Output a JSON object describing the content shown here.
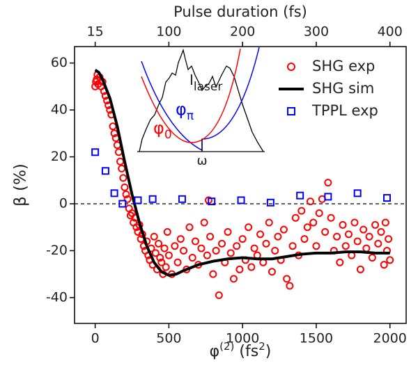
{
  "chart_data": {
    "type": "scatter",
    "ylabel": "β (%)",
    "xlabel_parts": [
      "φ",
      "(2)",
      " (fs",
      "2",
      ")"
    ],
    "x2label": "Pulse duration (fs)",
    "xlim": [
      -140,
      2110
    ],
    "ylim": [
      -51,
      67
    ],
    "xticks": [
      0,
      500,
      1000,
      1500,
      2000
    ],
    "yticks": [
      -40,
      -20,
      0,
      20,
      40,
      60
    ],
    "x2ticks": [
      {
        "value": 0,
        "label": "15"
      },
      {
        "value": 500,
        "label": "100"
      },
      {
        "value": 1000,
        "label": "200"
      },
      {
        "value": 1500,
        "label": "300"
      },
      {
        "value": 2000,
        "label": "400"
      }
    ],
    "reference_line": 0,
    "legend": "upper right",
    "series": [
      {
        "name": "SHG exp",
        "color": "#ff0000",
        "marker": "circle",
        "x": [
          0,
          5,
          10,
          15,
          20,
          30,
          40,
          50,
          60,
          70,
          80,
          90,
          100,
          110,
          120,
          130,
          140,
          150,
          160,
          170,
          180,
          190,
          200,
          210,
          220,
          230,
          240,
          250,
          260,
          270,
          280,
          290,
          300,
          310,
          320,
          330,
          340,
          350,
          360,
          370,
          380,
          390,
          400,
          410,
          420,
          430,
          440,
          450,
          460,
          470,
          480,
          490,
          500,
          520,
          540,
          560,
          580,
          600,
          620,
          640,
          660,
          680,
          700,
          720,
          740,
          760,
          770,
          780,
          800,
          820,
          840,
          860,
          880,
          900,
          920,
          940,
          960,
          980,
          1000,
          1020,
          1040,
          1060,
          1080,
          1100,
          1120,
          1140,
          1160,
          1180,
          1200,
          1220,
          1240,
          1260,
          1280,
          1300,
          1320,
          1340,
          1360,
          1380,
          1400,
          1420,
          1440,
          1460,
          1480,
          1500,
          1520,
          1540,
          1560,
          1580,
          1600,
          1620,
          1640,
          1660,
          1680,
          1700,
          1720,
          1740,
          1760,
          1780,
          1800,
          1820,
          1840,
          1860,
          1880,
          1900,
          1920,
          1940,
          1960,
          1970,
          1980,
          1990,
          2000
        ],
        "values": [
          50,
          52,
          53,
          55,
          51,
          54,
          50,
          52,
          48,
          46,
          44,
          42,
          40,
          38,
          33,
          30,
          28,
          25,
          22,
          18,
          15,
          11,
          7,
          4,
          2,
          -2,
          -5,
          -4,
          -8,
          -6,
          -10,
          -12,
          -9,
          -15,
          -13,
          -18,
          -20,
          -16,
          -22,
          -24,
          -19,
          -26,
          -14,
          -21,
          -28,
          -17,
          -23,
          -25,
          -30,
          -19,
          -27,
          -12,
          -22,
          -30,
          -18,
          -25,
          -15,
          -20,
          -28,
          -10,
          -23,
          -16,
          -26,
          -19,
          -8,
          -22,
          1.5,
          -14,
          -30,
          -20,
          -39,
          -17,
          -25,
          -12,
          -21,
          -32,
          -18,
          -28,
          -15,
          -24,
          -10,
          -27,
          -19,
          -22,
          -13,
          -25,
          -17,
          -8,
          -29,
          -20,
          -14,
          -24,
          -11,
          -32,
          -35,
          -18,
          -6,
          -22,
          -3,
          -15,
          -10,
          1,
          -8,
          -18,
          -4,
          2,
          -12,
          9,
          -6,
          -20,
          -14,
          -25,
          -9,
          -18,
          -13,
          -22,
          -8,
          -16,
          -28,
          -11,
          -19,
          -14,
          -23,
          -9,
          -17,
          -12,
          -26,
          -8,
          -20,
          -15,
          -24
        ]
      },
      {
        "name": "SHG sim",
        "color": "#000000",
        "marker": "line",
        "x": [
          0,
          25,
          50,
          100,
          150,
          200,
          250,
          300,
          350,
          400,
          450,
          500,
          550,
          600,
          700,
          800,
          900,
          1000,
          1100,
          1200,
          1300,
          1400,
          1500,
          1600,
          1700,
          1800,
          1900,
          2000
        ],
        "values": [
          57,
          56,
          53,
          45,
          33,
          18,
          4,
          -8,
          -18,
          -25,
          -29,
          -30.5,
          -30,
          -28.5,
          -26,
          -24.5,
          -23.5,
          -23,
          -23.5,
          -23.5,
          -22.5,
          -21.5,
          -21,
          -21,
          -20.5,
          -20.5,
          -21,
          -21
        ]
      },
      {
        "name": "TPPL exp",
        "color": "#0000ff",
        "marker": "square",
        "x": [
          0,
          70,
          130,
          185,
          290,
          390,
          590,
          790,
          990,
          1190,
          1390,
          1580,
          1780,
          1980
        ],
        "values": [
          22,
          14,
          4.5,
          0,
          1.5,
          2,
          2,
          1,
          1.5,
          0.5,
          3.5,
          3,
          4.5,
          2.5
        ]
      }
    ],
    "inset": {
      "intensity": "I",
      "intensity_sub": "laser",
      "phi_pi": "φ",
      "phi_pi_sub": "π",
      "phi_0": "φ",
      "phi_0_sub": "0",
      "omega": "ω"
    }
  }
}
